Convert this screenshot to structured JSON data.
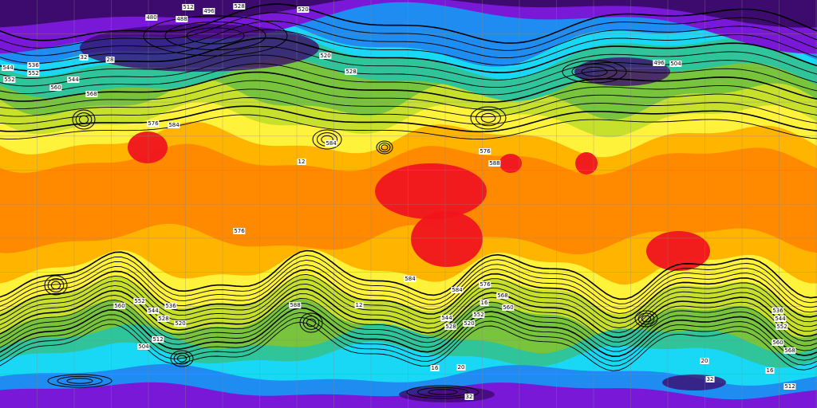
{
  "map": {
    "palette": {
      "deep_purple": "#3d0a6e",
      "purple": "#7a18d8",
      "blue": "#1e8cf0",
      "cyan": "#19d8f5",
      "teal": "#2fc49a",
      "green": "#78c43c",
      "yellow_green": "#c6e02c",
      "yellow": "#fff23a",
      "light_orange": "#ffb400",
      "orange": "#ff8a00",
      "red": "#f0141e",
      "contour": "#000000",
      "grid": "#8a8a8a"
    },
    "contour_labels": [
      "512",
      "480",
      "488",
      "496",
      "528",
      "520",
      "32",
      "28",
      "536",
      "544",
      "552",
      "568",
      "576",
      "584",
      "584",
      "12",
      "576",
      "588",
      "520",
      "528",
      "544",
      "552",
      "560",
      "576",
      "584",
      "588",
      "12",
      "16",
      "560",
      "552",
      "544",
      "536",
      "528",
      "520",
      "512",
      "504",
      "584",
      "576",
      "568",
      "560",
      "552",
      "544",
      "528",
      "520",
      "16",
      "20",
      "496",
      "504",
      "32",
      "16",
      "20",
      "32",
      "512",
      "536",
      "544",
      "552",
      "560",
      "568"
    ]
  }
}
